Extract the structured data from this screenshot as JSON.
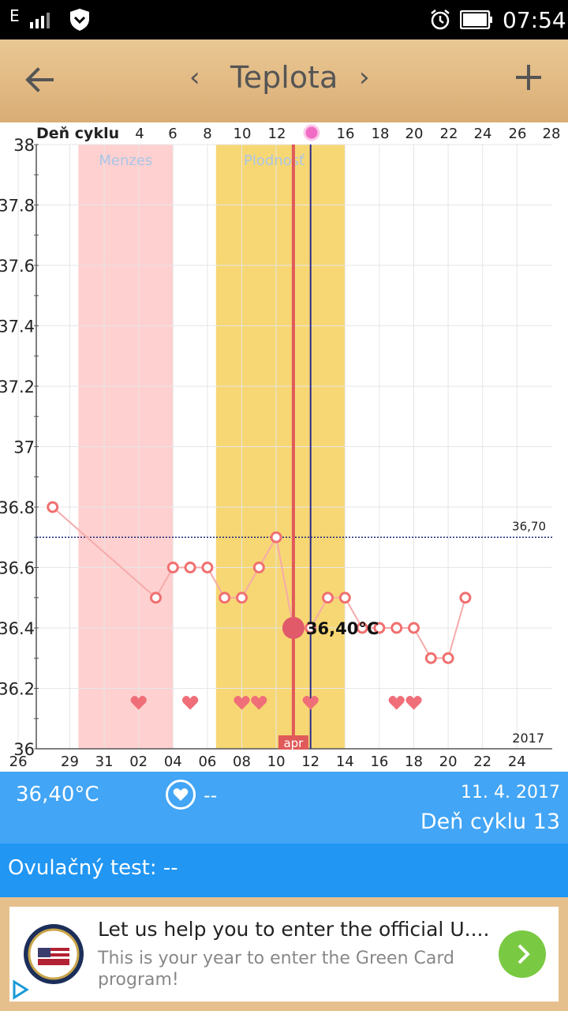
{
  "status_bar": {
    "network": "E",
    "signal_icon": "signal-icon",
    "shield_icon": "shield-icon",
    "alarm_icon": "alarm-icon",
    "battery_icon": "battery-icon",
    "time": "07:54"
  },
  "header": {
    "back_icon": "arrow-left-icon",
    "prev_label": "‹",
    "title": "Teplota",
    "next_label": "›",
    "add_icon": "plus-icon"
  },
  "chart_data": {
    "type": "line",
    "top_axis_label": "Deň cyklu",
    "cycle_day_ticks": [
      "4",
      "6",
      "8",
      "10",
      "12",
      "16",
      "18",
      "20",
      "22",
      "24",
      "26",
      "28"
    ],
    "bottom_date_ticks": [
      "29",
      "31",
      "02",
      "04",
      "06",
      "08",
      "10",
      "12",
      "14",
      "16",
      "18",
      "20",
      "22",
      "24",
      "26"
    ],
    "y_ticks": [
      "38",
      "37.8",
      "37.6",
      "37.4",
      "37.2",
      "37",
      "36.8",
      "36.6",
      "36.4",
      "36.2",
      "36"
    ],
    "ylim": [
      36,
      38
    ],
    "xlim": [
      27.4,
      26.4
    ],
    "menses_label": "Menzes",
    "fertile_label": "Plodnosť",
    "menses_range": [
      30,
      4
    ],
    "fertile_range": [
      7,
      14
    ],
    "threshold_label": "36,70",
    "threshold_value": 36.7,
    "month_label": "apr",
    "year_label": "2017",
    "selected_label": "36,40°C",
    "selected": {
      "x": 11,
      "y": 36.4
    },
    "today_x": 12,
    "series": [
      {
        "x": [
          28,
          3,
          4,
          5,
          6,
          7,
          8,
          9,
          10,
          12,
          13,
          14,
          15,
          16,
          17,
          18,
          19,
          20,
          21
        ],
        "values": [
          36.8,
          36.5,
          36.6,
          36.6,
          36.6,
          36.5,
          36.5,
          36.6,
          36.7,
          36.4,
          36.5,
          36.5,
          36.4,
          36.4,
          36.4,
          36.4,
          36.3,
          36.3,
          36.5
        ]
      }
    ],
    "hearts_x": [
      2,
      5,
      8,
      9,
      12,
      17,
      18
    ],
    "accent_color": "#f07070",
    "menses_color": "#ffd0d0",
    "fertile_color": "#f7d774",
    "selected_line_color": "#e05a5a",
    "today_line_color": "#2a2a8a"
  },
  "info": {
    "temperature": "36,40°C",
    "heart_icon": "heart-icon",
    "intercourse": "--",
    "date": "11. 4. 2017",
    "cycle_day": "Deň cyklu 13"
  },
  "ovulation": {
    "label": "Ovulačný test: --"
  },
  "ad": {
    "logo_icon": "usa-seal-icon",
    "headline": "Let us help you to enter the official U....",
    "body": "This is your year to enter the Green Card program!",
    "go_icon": "chevron-right-icon",
    "adchoices_icon": "adchoices-icon"
  }
}
